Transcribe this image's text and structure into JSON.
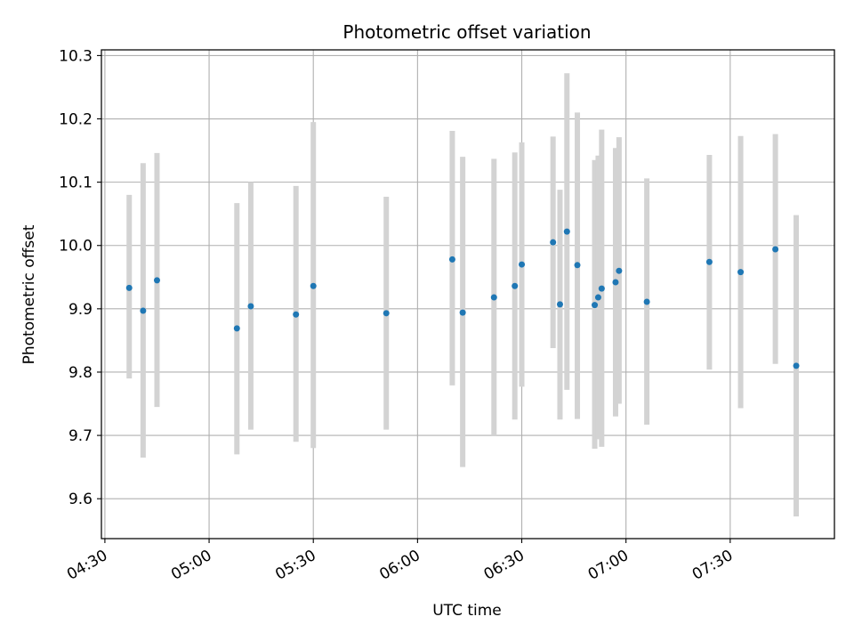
{
  "chart_data": {
    "type": "scatter",
    "title": "Photometric offset variation",
    "xlabel": "UTC time",
    "ylabel": "Photometric offset",
    "xlim": [
      "04:29",
      "08:00"
    ],
    "ylim": [
      9.537,
      10.309
    ],
    "grid": true,
    "xticks": [
      "04:30",
      "05:00",
      "05:30",
      "06:00",
      "06:30",
      "07:00",
      "07:30"
    ],
    "yticks": [
      "9.6",
      "9.7",
      "9.8",
      "9.9",
      "10.0",
      "10.1",
      "10.2",
      "10.3"
    ],
    "point_color": "#1f77b4",
    "errorbar_color": "#d3d3d3",
    "points": [
      {
        "t": "04:37",
        "y": 9.933,
        "low": 9.79,
        "high": 10.08
      },
      {
        "t": "04:41",
        "y": 9.897,
        "low": 9.665,
        "high": 10.13
      },
      {
        "t": "04:45",
        "y": 9.945,
        "low": 9.745,
        "high": 10.146
      },
      {
        "t": "05:08",
        "y": 9.869,
        "low": 9.67,
        "high": 10.067
      },
      {
        "t": "05:12",
        "y": 9.904,
        "low": 9.709,
        "high": 10.1
      },
      {
        "t": "05:25",
        "y": 9.891,
        "low": 9.69,
        "high": 10.094
      },
      {
        "t": "05:30",
        "y": 9.936,
        "low": 9.68,
        "high": 10.195
      },
      {
        "t": "05:51",
        "y": 9.893,
        "low": 9.709,
        "high": 10.077
      },
      {
        "t": "06:10",
        "y": 9.978,
        "low": 9.779,
        "high": 10.181
      },
      {
        "t": "06:13",
        "y": 9.894,
        "low": 9.65,
        "high": 10.14
      },
      {
        "t": "06:22",
        "y": 9.918,
        "low": 9.7,
        "high": 10.137
      },
      {
        "t": "06:28",
        "y": 9.936,
        "low": 9.725,
        "high": 10.147
      },
      {
        "t": "06:30",
        "y": 9.97,
        "low": 9.777,
        "high": 10.163
      },
      {
        "t": "06:39",
        "y": 10.005,
        "low": 9.838,
        "high": 10.172
      },
      {
        "t": "06:41",
        "y": 9.907,
        "low": 9.725,
        "high": 10.088
      },
      {
        "t": "06:43",
        "y": 10.022,
        "low": 9.772,
        "high": 10.272
      },
      {
        "t": "06:46",
        "y": 9.969,
        "low": 9.726,
        "high": 10.21
      },
      {
        "t": "06:51",
        "y": 9.906,
        "low": 9.679,
        "high": 10.135
      },
      {
        "t": "06:52",
        "y": 9.918,
        "low": 9.694,
        "high": 10.142
      },
      {
        "t": "06:53",
        "y": 9.932,
        "low": 9.682,
        "high": 10.183
      },
      {
        "t": "06:57",
        "y": 9.942,
        "low": 9.73,
        "high": 10.154
      },
      {
        "t": "06:58",
        "y": 9.96,
        "low": 9.75,
        "high": 10.171
      },
      {
        "t": "07:06",
        "y": 9.911,
        "low": 9.717,
        "high": 10.106
      },
      {
        "t": "07:24",
        "y": 9.974,
        "low": 9.804,
        "high": 10.143
      },
      {
        "t": "07:33",
        "y": 9.958,
        "low": 9.743,
        "high": 10.173
      },
      {
        "t": "07:43",
        "y": 9.994,
        "low": 9.813,
        "high": 10.176
      },
      {
        "t": "07:49",
        "y": 9.81,
        "low": 9.572,
        "high": 10.048
      }
    ]
  }
}
